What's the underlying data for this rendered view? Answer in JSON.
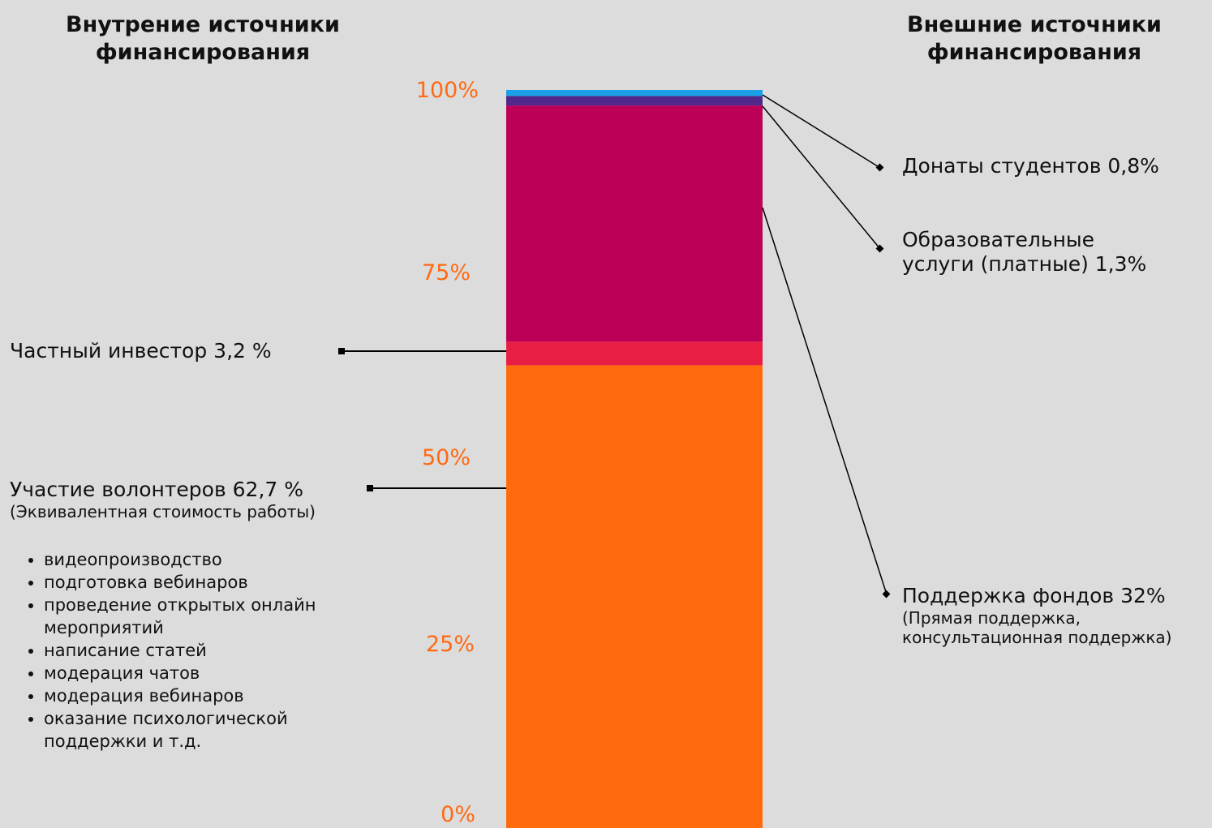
{
  "headers": {
    "internal": [
      "Внутрение источники",
      "финансирования"
    ],
    "external": [
      "Внешние источники",
      "финансирования"
    ]
  },
  "chart_data": {
    "type": "bar",
    "stacked": true,
    "ylim": [
      0,
      100
    ],
    "ticks": [
      "0%",
      "25%",
      "50%",
      "75%",
      "100%"
    ],
    "segments": [
      {
        "name": "Участие волонтеров",
        "value": 62.7,
        "color": "#ff6a0d"
      },
      {
        "name": "Частный инвестор",
        "value": 3.2,
        "color": "#e91e44"
      },
      {
        "name": "Поддержка фондов",
        "value": 32,
        "color": "#bd0057"
      },
      {
        "name": "Образовательные услуги (платные)",
        "value": 1.3,
        "color": "#50288a"
      },
      {
        "name": "Донаты студентов",
        "value": 0.8,
        "color": "#1aa0e6"
      }
    ]
  },
  "labels": {
    "investor": {
      "text": "Частный инвестор ",
      "value": "3,2 %"
    },
    "volunteers": {
      "text": "Участие волонтеров ",
      "value": "62,7 %",
      "sub": "(Эквивалентная стоимость работы)"
    },
    "donations": {
      "text": "Донаты студентов ",
      "value": "0,8%"
    },
    "services": {
      "line1": "Образовательные",
      "text": "услуги (платные) ",
      "value": "1,3%"
    },
    "funds": {
      "text": "Поддержка фондов ",
      "value": "32%",
      "sub1": "(Прямая поддержка,",
      "sub2": "консультационная поддержка)"
    }
  },
  "activities": [
    "видеопроизводство",
    "подготовка вебинаров",
    "проведение открытых онлайн мероприятий",
    "написание статей",
    "модерация чатов",
    "модерация вебинаров",
    "оказание психологической поддержки и т.д."
  ]
}
